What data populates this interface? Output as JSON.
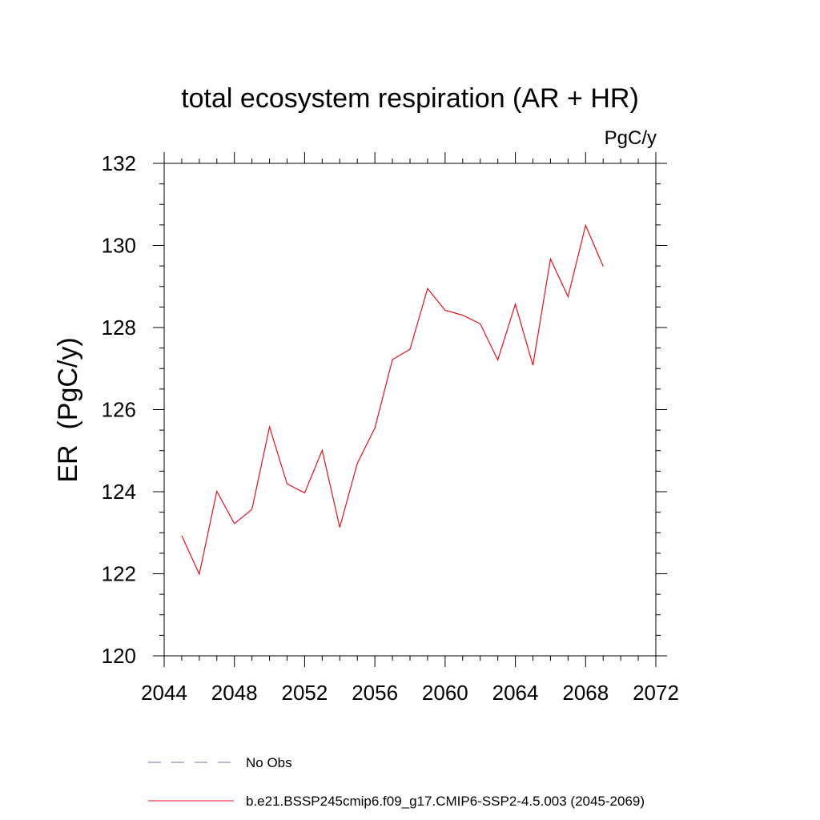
{
  "chart_data": {
    "type": "line",
    "title": "total ecosystem respiration (AR + HR)",
    "units_label": "PgC/y",
    "ylabel": "ER  (PgC/y)",
    "xlabel": "",
    "xlim": [
      2044,
      2072
    ],
    "ylim": [
      120,
      132
    ],
    "x_ticks": [
      2044,
      2048,
      2052,
      2056,
      2060,
      2064,
      2068,
      2072
    ],
    "y_ticks": [
      120,
      122,
      124,
      126,
      128,
      130,
      132
    ],
    "x_tick_labels": [
      "2044",
      "2048",
      "2052",
      "2056",
      "2060",
      "2064",
      "2068",
      "2072"
    ],
    "y_tick_labels": [
      "120",
      "122",
      "124",
      "126",
      "128",
      "130",
      "132"
    ],
    "grid": false,
    "legend_position": "bottom",
    "series": [
      {
        "name": "b.e21.BSSP245cmip6.f09_g17.CMIP6-SSP2-4.5.003 (2045-2069)",
        "color": "#e8101a",
        "style": "solid",
        "x": [
          2045,
          2046,
          2047,
          2048,
          2049,
          2050,
          2051,
          2052,
          2053,
          2054,
          2055,
          2056,
          2057,
          2058,
          2059,
          2060,
          2061,
          2062,
          2063,
          2064,
          2065,
          2066,
          2067,
          2068,
          2069
        ],
        "values": [
          122.93,
          121.99,
          124.01,
          123.22,
          123.57,
          125.58,
          124.19,
          123.97,
          125.01,
          123.13,
          124.69,
          125.55,
          127.22,
          127.47,
          128.95,
          128.42,
          128.3,
          128.09,
          127.21,
          128.57,
          127.08,
          129.67,
          128.75,
          130.49,
          129.49
        ]
      }
    ],
    "legend": [
      {
        "label": "No Obs",
        "color": "#6f6fb0",
        "style": "dashed"
      },
      {
        "label": "b.e21.BSSP245cmip6.f09_g17.CMIP6-SSP2-4.5.003 (2045-2069)",
        "color": "#e8101a",
        "style": "solid"
      }
    ]
  }
}
